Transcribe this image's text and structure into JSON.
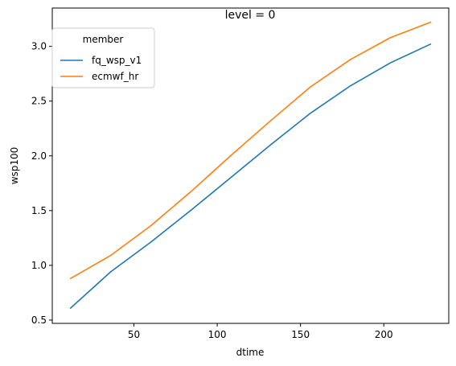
{
  "chart_data": {
    "type": "line",
    "title": "level = 0",
    "xlabel": "dtime",
    "ylabel": "wsp100",
    "xlim": [
      1,
      239
    ],
    "ylim": [
      0.47,
      3.35
    ],
    "xticks": [
      50,
      100,
      150,
      200
    ],
    "yticks": [
      0.5,
      1.0,
      1.5,
      2.0,
      2.5,
      3.0
    ],
    "xtick_labels": [
      "50",
      "100",
      "150",
      "200"
    ],
    "ytick_labels": [
      "0.5",
      "1.0",
      "1.5",
      "2.0",
      "2.5",
      "3.0"
    ],
    "grid": false,
    "legend": {
      "title": "member",
      "placement": "top-left"
    },
    "x": [
      12,
      36,
      60,
      84,
      108,
      132,
      156,
      180,
      204,
      228
    ],
    "series": [
      {
        "name": "fq_wsp_v1",
        "color": "#1f77b4",
        "values": [
          0.61,
          0.94,
          1.21,
          1.5,
          1.8,
          2.1,
          2.39,
          2.64,
          2.85,
          3.02
        ]
      },
      {
        "name": "ecmwf_hr",
        "color": "#ff7f0e",
        "values": [
          0.88,
          1.09,
          1.36,
          1.67,
          2.0,
          2.32,
          2.63,
          2.88,
          3.08,
          3.22
        ]
      }
    ]
  }
}
